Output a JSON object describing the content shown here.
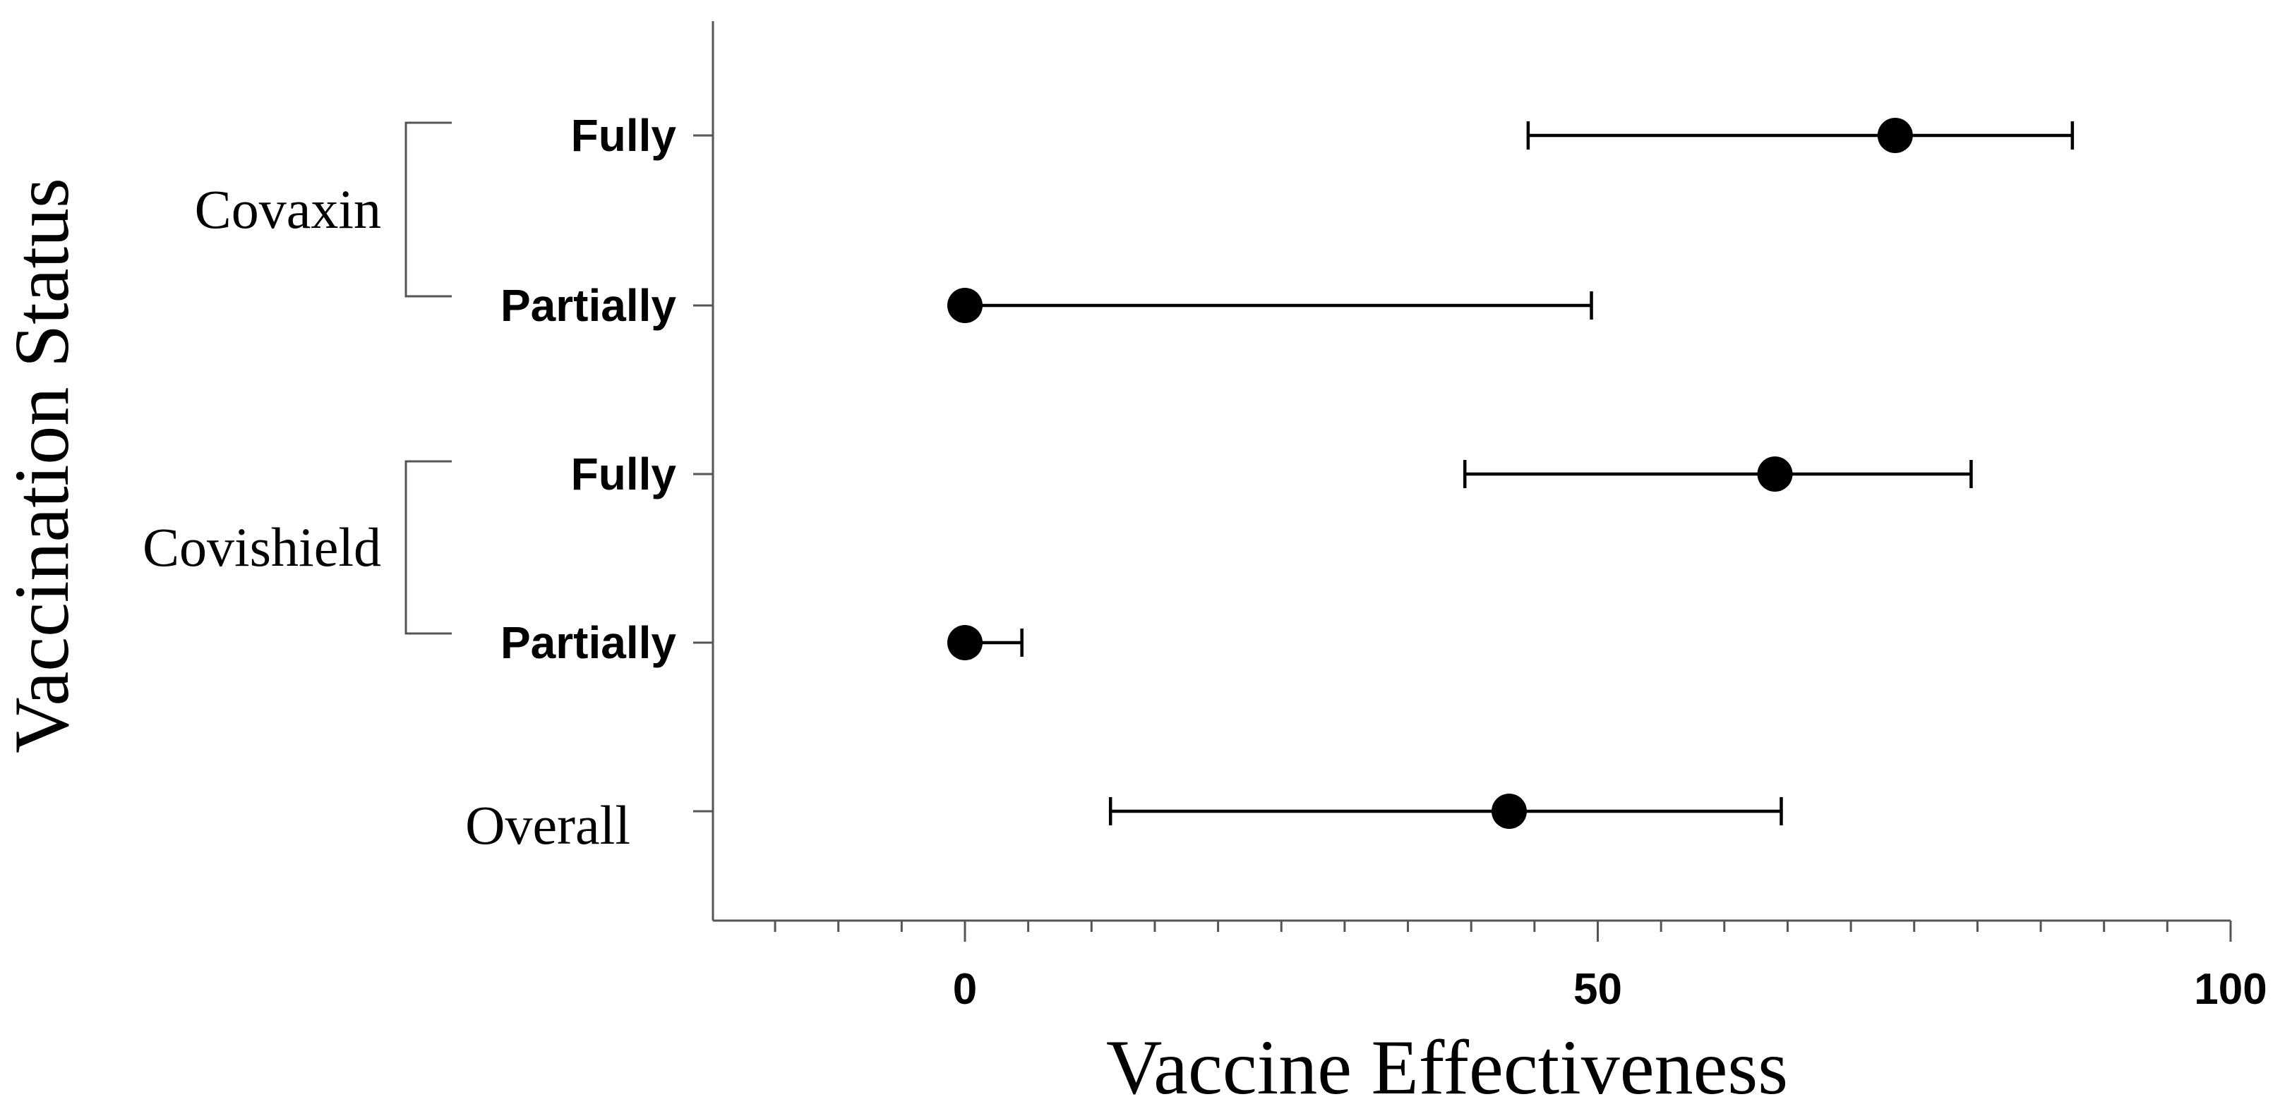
{
  "chart_data": {
    "type": "forest",
    "title": "",
    "xlabel": "Vaccine Effectiveness",
    "ylabel": "Vaccination Status",
    "xlim": [
      -20,
      100
    ],
    "x_ticks": [
      0,
      50,
      100
    ],
    "x_tick_labels": [
      "0",
      "50",
      "100"
    ],
    "x_minor_step": 5,
    "grid": false,
    "groups": [
      {
        "label": "Covaxin",
        "rows": [
          0,
          1
        ]
      },
      {
        "label": "Covishield",
        "rows": [
          2,
          3
        ]
      }
    ],
    "rows": [
      {
        "label": "Fully",
        "style": "bold",
        "estimate": 73.5,
        "lower": 44.5,
        "upper": 87.5
      },
      {
        "label": "Partially",
        "style": "bold",
        "estimate": 0,
        "lower": 0,
        "upper": 49.5
      },
      {
        "label": "Fully",
        "style": "bold",
        "estimate": 64,
        "lower": 39.5,
        "upper": 79.5
      },
      {
        "label": "Partially",
        "style": "bold",
        "estimate": 0,
        "lower": 0,
        "upper": 4.5
      },
      {
        "label": "Overall",
        "style": "plain",
        "estimate": 43,
        "lower": 11.5,
        "upper": 64.5
      }
    ],
    "colors": {
      "marks": "#000000",
      "axes": "#555555",
      "text": "#000000"
    }
  }
}
